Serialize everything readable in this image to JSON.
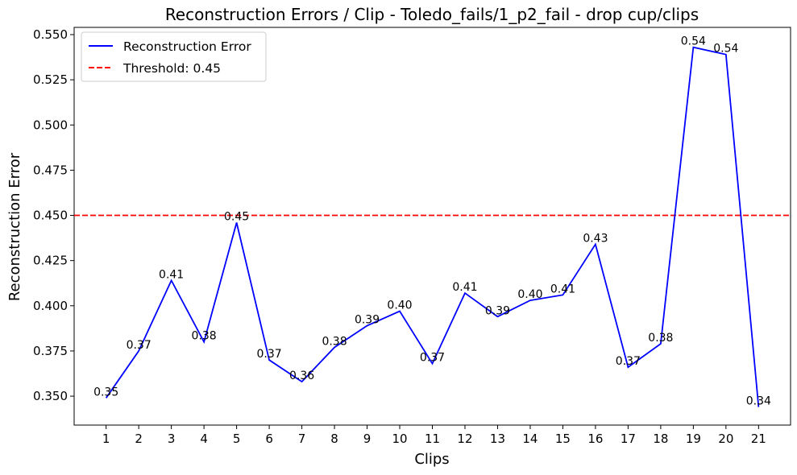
{
  "chart_data": {
    "type": "line",
    "title": "Reconstruction Errors / Clip - Toledo_fails/1_p2_fail - drop cup/clips",
    "xlabel": "Clips",
    "ylabel": "Reconstruction Error",
    "x": [
      1,
      2,
      3,
      4,
      5,
      6,
      7,
      8,
      9,
      10,
      11,
      12,
      13,
      14,
      15,
      16,
      17,
      18,
      19,
      20,
      21
    ],
    "series": [
      {
        "name": "Reconstruction Error",
        "color": "#0000ff",
        "values": [
          0.349,
          0.375,
          0.414,
          0.38,
          0.446,
          0.37,
          0.358,
          0.377,
          0.389,
          0.397,
          0.368,
          0.407,
          0.394,
          0.403,
          0.406,
          0.434,
          0.366,
          0.379,
          0.543,
          0.539,
          0.344
        ],
        "labels": [
          "0.35",
          "0.37",
          "0.41",
          "0.38",
          "0.45",
          "0.37",
          "0.36",
          "0.38",
          "0.39",
          "0.40",
          "0.37",
          "0.41",
          "0.39",
          "0.40",
          "0.41",
          "0.43",
          "0.37",
          "0.38",
          "0.54",
          "0.54",
          "0.34"
        ]
      }
    ],
    "threshold": {
      "name": "Threshold: 0.45",
      "value": 0.45,
      "color": "#ff0000",
      "style": "dashed"
    },
    "xticks": [
      "1",
      "2",
      "3",
      "4",
      "5",
      "6",
      "7",
      "8",
      "9",
      "10",
      "11",
      "12",
      "13",
      "14",
      "15",
      "16",
      "17",
      "18",
      "19",
      "20",
      "21"
    ],
    "yticks": [
      "0.350",
      "0.375",
      "0.400",
      "0.425",
      "0.450",
      "0.475",
      "0.500",
      "0.525",
      "0.550"
    ],
    "ytick_values": [
      0.35,
      0.375,
      0.4,
      0.425,
      0.45,
      0.475,
      0.5,
      0.525,
      0.55
    ],
    "xlim": [
      0.02,
      21.98
    ],
    "ylim": [
      0.334,
      0.554
    ],
    "grid": false,
    "legend_position": "upper-left"
  }
}
